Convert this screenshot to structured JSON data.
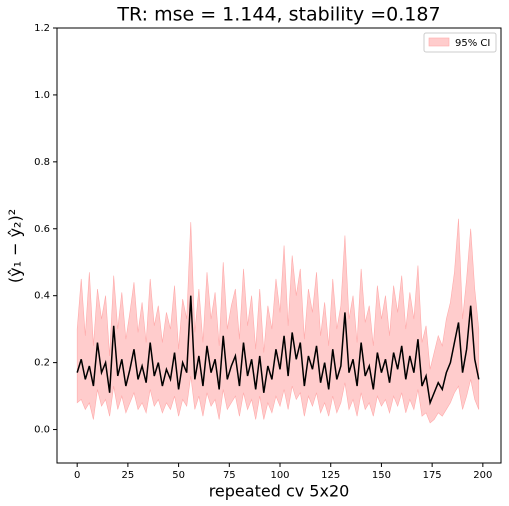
{
  "chart_data": {
    "type": "line",
    "title": "TR: mse = 1.144, stability =0.187",
    "xlabel": "repeated cv 5x20",
    "ylabel": "(ŷ₁ − ŷ₂)²",
    "x": [
      0,
      2,
      4,
      6,
      8,
      10,
      12,
      14,
      16,
      18,
      20,
      22,
      24,
      26,
      28,
      30,
      32,
      34,
      36,
      38,
      40,
      42,
      44,
      46,
      48,
      50,
      52,
      54,
      56,
      58,
      60,
      62,
      64,
      66,
      68,
      70,
      72,
      74,
      76,
      78,
      80,
      82,
      84,
      86,
      88,
      90,
      92,
      94,
      96,
      98,
      100,
      102,
      104,
      106,
      108,
      110,
      112,
      114,
      116,
      118,
      120,
      122,
      124,
      126,
      128,
      130,
      132,
      134,
      136,
      138,
      140,
      142,
      144,
      146,
      148,
      150,
      152,
      154,
      156,
      158,
      160,
      162,
      164,
      166,
      168,
      170,
      172,
      174,
      176,
      178,
      180,
      182,
      184,
      186,
      188,
      190,
      192,
      194,
      196,
      198
    ],
    "series": [
      {
        "color": "#000000",
        "values": [
          0.17,
          0.21,
          0.15,
          0.19,
          0.13,
          0.26,
          0.17,
          0.2,
          0.11,
          0.31,
          0.16,
          0.21,
          0.13,
          0.18,
          0.24,
          0.15,
          0.19,
          0.14,
          0.26,
          0.16,
          0.2,
          0.13,
          0.18,
          0.15,
          0.23,
          0.12,
          0.2,
          0.17,
          0.4,
          0.15,
          0.22,
          0.13,
          0.25,
          0.17,
          0.21,
          0.12,
          0.28,
          0.15,
          0.19,
          0.22,
          0.13,
          0.26,
          0.16,
          0.21,
          0.12,
          0.22,
          0.11,
          0.19,
          0.15,
          0.24,
          0.18,
          0.28,
          0.16,
          0.29,
          0.21,
          0.26,
          0.13,
          0.22,
          0.18,
          0.25,
          0.14,
          0.2,
          0.12,
          0.24,
          0.15,
          0.19,
          0.35,
          0.17,
          0.21,
          0.13,
          0.26,
          0.16,
          0.19,
          0.12,
          0.23,
          0.17,
          0.21,
          0.14,
          0.23,
          0.18,
          0.25,
          0.15,
          0.22,
          0.17,
          0.27,
          0.13,
          0.16,
          0.08,
          0.11,
          0.14,
          0.12,
          0.17,
          0.2,
          0.26,
          0.32,
          0.17,
          0.24,
          0.37,
          0.21,
          0.15
        ]
      }
    ],
    "ci": {
      "name": "95% CI",
      "color": "#ffcccc",
      "edge": "#ffaaaa",
      "lower": [
        0.08,
        0.09,
        0.06,
        0.08,
        0.03,
        0.12,
        0.07,
        0.09,
        0.04,
        0.13,
        0.06,
        0.1,
        0.05,
        0.08,
        0.11,
        0.06,
        0.08,
        0.05,
        0.12,
        0.07,
        0.09,
        0.05,
        0.08,
        0.06,
        0.1,
        0.04,
        0.09,
        0.07,
        0.16,
        0.06,
        0.1,
        0.04,
        0.11,
        0.07,
        0.09,
        0.03,
        0.12,
        0.06,
        0.08,
        0.1,
        0.04,
        0.11,
        0.06,
        0.09,
        0.03,
        0.1,
        0.03,
        0.08,
        0.05,
        0.1,
        0.07,
        0.12,
        0.06,
        0.13,
        0.09,
        0.11,
        0.04,
        0.1,
        0.07,
        0.11,
        0.05,
        0.08,
        0.04,
        0.1,
        0.05,
        0.08,
        0.14,
        0.06,
        0.09,
        0.04,
        0.11,
        0.06,
        0.08,
        0.04,
        0.1,
        0.07,
        0.09,
        0.05,
        0.1,
        0.07,
        0.11,
        0.05,
        0.09,
        0.06,
        0.12,
        0.04,
        0.05,
        0.02,
        0.03,
        0.05,
        0.04,
        0.06,
        0.08,
        0.11,
        0.13,
        0.06,
        0.1,
        0.15,
        0.09,
        0.06
      ],
      "upper": [
        0.3,
        0.45,
        0.28,
        0.47,
        0.25,
        0.42,
        0.33,
        0.4,
        0.22,
        0.46,
        0.3,
        0.41,
        0.27,
        0.35,
        0.44,
        0.29,
        0.38,
        0.26,
        0.45,
        0.31,
        0.37,
        0.26,
        0.35,
        0.3,
        0.43,
        0.24,
        0.39,
        0.33,
        0.62,
        0.29,
        0.42,
        0.26,
        0.47,
        0.33,
        0.41,
        0.25,
        0.5,
        0.3,
        0.37,
        0.42,
        0.27,
        0.48,
        0.31,
        0.4,
        0.24,
        0.42,
        0.23,
        0.37,
        0.3,
        0.45,
        0.35,
        0.55,
        0.31,
        0.52,
        0.4,
        0.48,
        0.27,
        0.42,
        0.35,
        0.47,
        0.28,
        0.38,
        0.25,
        0.45,
        0.3,
        0.37,
        0.58,
        0.33,
        0.4,
        0.26,
        0.48,
        0.32,
        0.37,
        0.25,
        0.43,
        0.33,
        0.4,
        0.28,
        0.43,
        0.35,
        0.46,
        0.3,
        0.41,
        0.33,
        0.49,
        0.26,
        0.31,
        0.18,
        0.23,
        0.28,
        0.25,
        0.33,
        0.38,
        0.47,
        0.63,
        0.33,
        0.45,
        0.6,
        0.42,
        0.3
      ]
    },
    "xlim": [
      -9.95,
      208.95
    ],
    "ylim": [
      -0.1,
      1.2
    ],
    "xticks": [
      0,
      25,
      50,
      75,
      100,
      125,
      150,
      175,
      200
    ],
    "yticks": [
      {
        "value": 0,
        "label": "0.0"
      },
      {
        "value": 0.2,
        "label": "0.2"
      },
      {
        "value": 0.4,
        "label": "0.4"
      },
      {
        "value": 0.6,
        "label": "0.6"
      },
      {
        "value": 0.8,
        "label": "0.8"
      },
      {
        "value": 1.0,
        "label": "1.0"
      },
      {
        "value": 1.2,
        "label": "1.2"
      }
    ],
    "legend": "upper right"
  }
}
